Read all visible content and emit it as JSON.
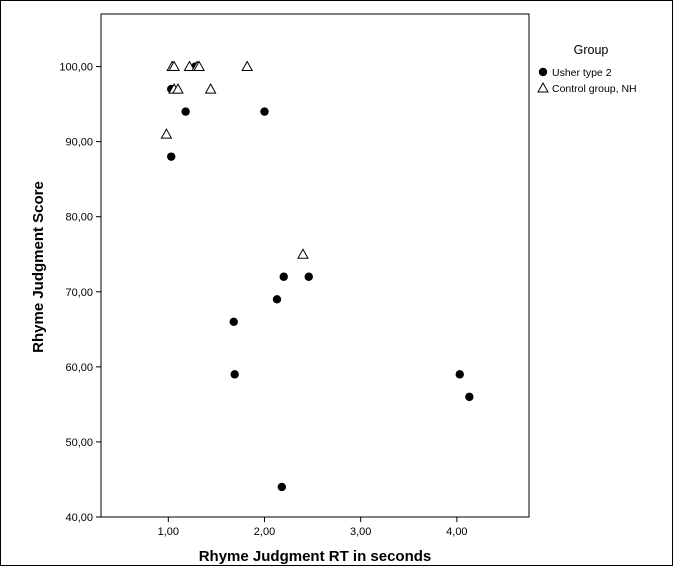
{
  "chart_data": {
    "type": "scatter",
    "xlabel": "Rhyme Judgment RT in seconds",
    "ylabel": "Rhyme Judgment Score",
    "xlim": [
      0.3,
      4.75
    ],
    "ylim": [
      40,
      107
    ],
    "x_ticks": [
      1,
      2,
      3,
      4
    ],
    "x_tick_labels": [
      "1,00",
      "2,00",
      "3,00",
      "4,00"
    ],
    "y_ticks": [
      40,
      50,
      60,
      70,
      80,
      90,
      100
    ],
    "y_tick_labels": [
      "40,00",
      "50,00",
      "60,00",
      "70,00",
      "80,00",
      "90,00",
      "100,00"
    ],
    "grid": false,
    "legend": {
      "title": "Group",
      "position": "right",
      "entries": [
        "Usher type 2",
        "Control group, NH"
      ]
    },
    "series": [
      {
        "name": "Usher type 2",
        "marker": "filled-circle",
        "color": "#000000",
        "points": [
          {
            "x": 1.03,
            "y": 97
          },
          {
            "x": 1.28,
            "y": 100
          },
          {
            "x": 1.18,
            "y": 94
          },
          {
            "x": 2.0,
            "y": 94
          },
          {
            "x": 1.03,
            "y": 88
          },
          {
            "x": 2.2,
            "y": 72
          },
          {
            "x": 2.46,
            "y": 72
          },
          {
            "x": 2.13,
            "y": 69
          },
          {
            "x": 1.68,
            "y": 66
          },
          {
            "x": 1.69,
            "y": 59
          },
          {
            "x": 4.03,
            "y": 59
          },
          {
            "x": 4.13,
            "y": 56
          },
          {
            "x": 2.18,
            "y": 44
          }
        ]
      },
      {
        "name": "Control group, NH",
        "marker": "open-triangle",
        "color": "#000000",
        "points": [
          {
            "x": 1.04,
            "y": 100
          },
          {
            "x": 1.06,
            "y": 100
          },
          {
            "x": 1.22,
            "y": 100
          },
          {
            "x": 1.3,
            "y": 100
          },
          {
            "x": 1.32,
            "y": 100
          },
          {
            "x": 1.82,
            "y": 100
          },
          {
            "x": 1.06,
            "y": 97
          },
          {
            "x": 1.1,
            "y": 97
          },
          {
            "x": 1.44,
            "y": 97
          },
          {
            "x": 0.98,
            "y": 91
          },
          {
            "x": 2.4,
            "y": 75
          }
        ]
      }
    ]
  }
}
